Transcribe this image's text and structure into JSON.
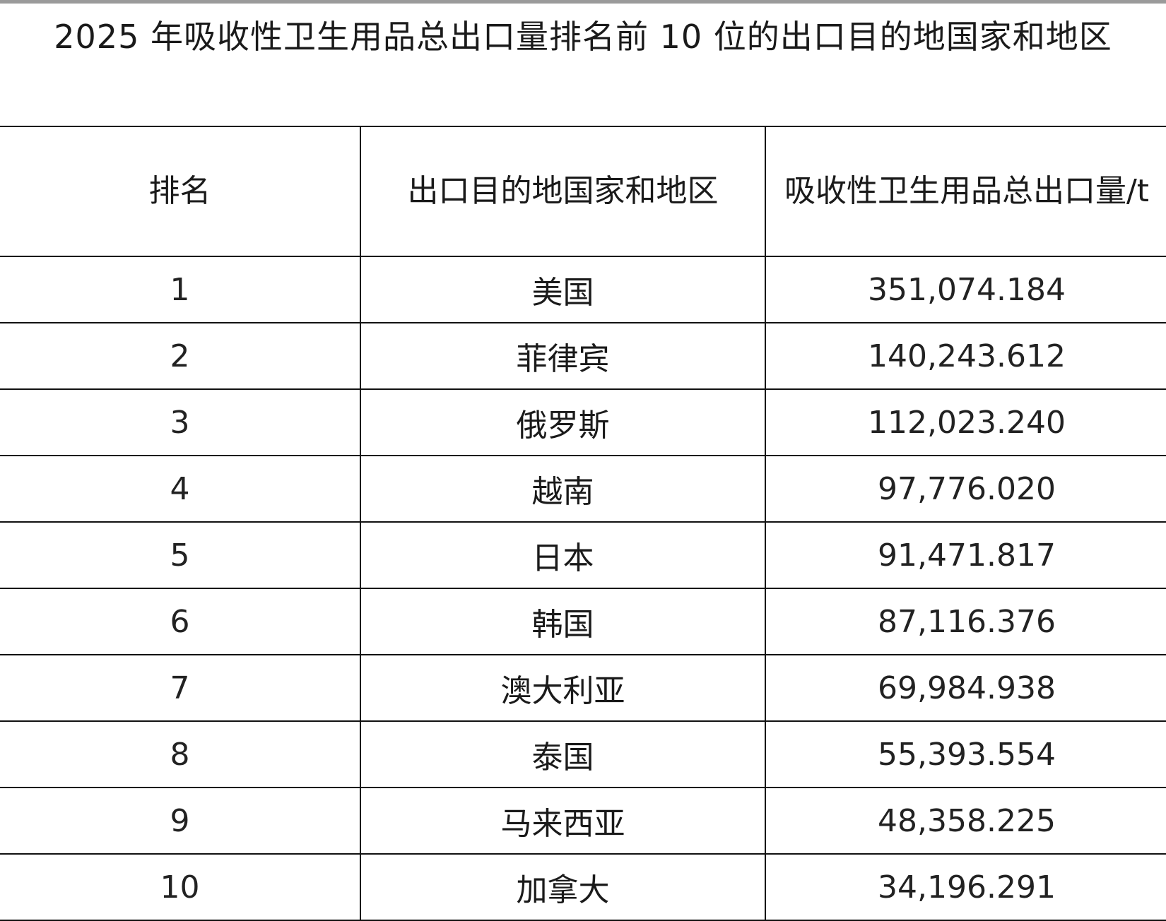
{
  "title": "2025 年吸收性卫生用品总出口量排名前 10 位的出口目的地国家和地区",
  "table": {
    "headers": [
      "排名",
      "出口目的地国家和地区",
      "吸收性卫生用品总出口量/t"
    ],
    "rows": [
      [
        "1",
        "美国",
        "351,074.184"
      ],
      [
        "2",
        "菲律宾",
        "140,243.612"
      ],
      [
        "3",
        "俄罗斯",
        "112,023.240"
      ],
      [
        "4",
        "越南",
        "97,776.020"
      ],
      [
        "5",
        "日本",
        "91,471.817"
      ],
      [
        "6",
        "韩国",
        "87,116.376"
      ],
      [
        "7",
        "澳大利亚",
        "69,984.938"
      ],
      [
        "8",
        "泰国",
        "55,393.554"
      ],
      [
        "9",
        "马来西亚",
        "48,358.225"
      ],
      [
        "10",
        "加拿大",
        "34,196.291"
      ]
    ]
  }
}
